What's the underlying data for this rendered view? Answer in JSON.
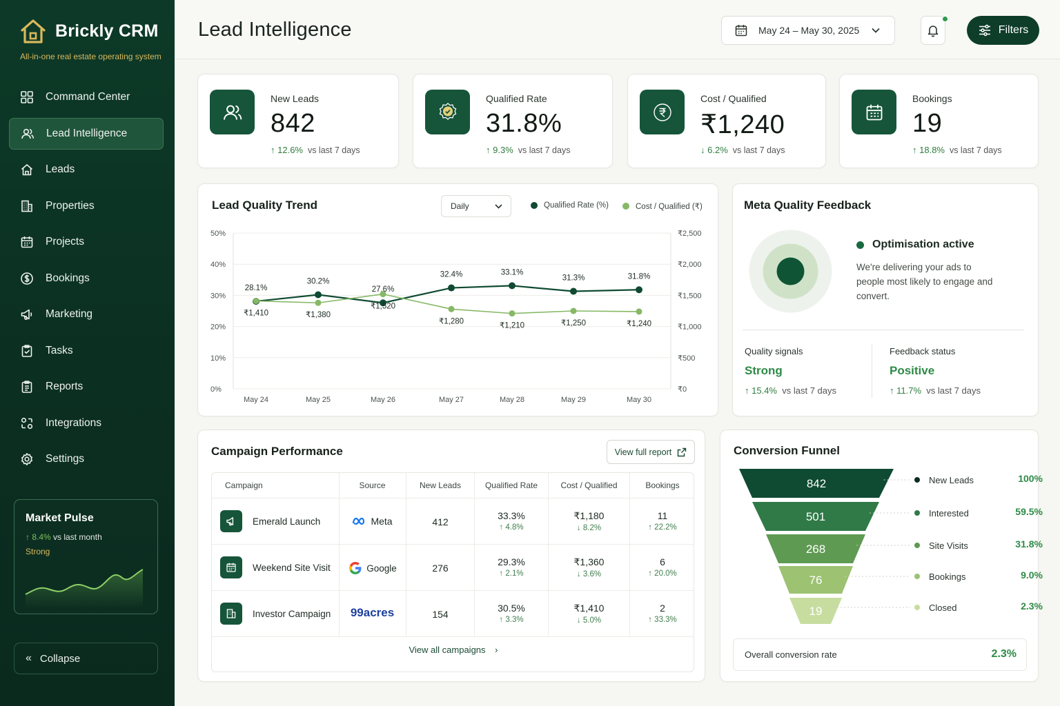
{
  "brand": {
    "name": "Brickly CRM",
    "tagline": "All-in-one real estate operating system"
  },
  "nav": [
    {
      "label": "Command Center",
      "icon": "grid-icon",
      "active": false
    },
    {
      "label": "Lead Intelligence",
      "icon": "users-icon",
      "active": true
    },
    {
      "label": "Leads",
      "icon": "home-icon",
      "active": false
    },
    {
      "label": "Properties",
      "icon": "building-icon",
      "active": false
    },
    {
      "label": "Projects",
      "icon": "calendar-icon",
      "active": false
    },
    {
      "label": "Bookings",
      "icon": "dollar-circle-icon",
      "active": false
    },
    {
      "label": "Marketing",
      "icon": "megaphone-icon",
      "active": false
    },
    {
      "label": "Tasks",
      "icon": "clipboard-check-icon",
      "active": false
    },
    {
      "label": "Reports",
      "icon": "report-icon",
      "active": false
    },
    {
      "label": "Integrations",
      "icon": "integrations-icon",
      "active": false
    },
    {
      "label": "Settings",
      "icon": "gear-icon",
      "active": false
    }
  ],
  "market_pulse": {
    "title": "Market Pulse",
    "delta": "8.4%",
    "delta_suffix": "vs last month",
    "strength": "Strong"
  },
  "collapse_label": "Collapse",
  "header": {
    "title": "Lead Intelligence",
    "date_range": "May 24 – May 30, 2025",
    "filters_label": "Filters"
  },
  "kpis": [
    {
      "label": "New Leads",
      "value": "842",
      "delta": "12.6%",
      "direction": "up",
      "suffix": "vs last 7 days",
      "icon": "users-icon"
    },
    {
      "label": "Qualified Rate",
      "value": "31.8%",
      "delta": "9.3%",
      "direction": "up",
      "suffix": "vs last 7 days",
      "icon": "check-badge-icon"
    },
    {
      "label": "Cost / Qualified",
      "value": "₹1,240",
      "delta": "6.2%",
      "direction": "down",
      "suffix": "vs last 7 days",
      "icon": "rupee-icon"
    },
    {
      "label": "Bookings",
      "value": "19",
      "delta": "18.8%",
      "direction": "up",
      "suffix": "vs last 7 days",
      "icon": "calendar-grid-icon"
    }
  ],
  "trend": {
    "title": "Lead Quality Trend",
    "period": "Daily",
    "legend_qualified": "Qualified Rate (%)",
    "legend_cost": "Cost / Qualified (₹)"
  },
  "chart_data": {
    "type": "line",
    "categories": [
      "May 24",
      "May 25",
      "May 26",
      "May 27",
      "May 28",
      "May 29",
      "May 30"
    ],
    "series": [
      {
        "name": "Qualified Rate (%)",
        "axis": "left",
        "color": "#0f4a32",
        "values": [
          28.1,
          30.2,
          27.6,
          32.4,
          33.1,
          31.3,
          31.8
        ],
        "labels": [
          "28.1%",
          "30.2%",
          "27.6%",
          "32.4%",
          "33.1%",
          "31.3%",
          "31.8%"
        ]
      },
      {
        "name": "Cost / Qualified (₹)",
        "axis": "right",
        "color": "#86b866",
        "values": [
          1410,
          1380,
          1520,
          1280,
          1210,
          1250,
          1240
        ],
        "labels": [
          "₹1,410",
          "₹1,380",
          "₹1,520",
          "₹1,280",
          "₹1,210",
          "₹1,250",
          "₹1,240"
        ]
      }
    ],
    "left_axis": {
      "ticks": [
        "0%",
        "10%",
        "20%",
        "30%",
        "40%",
        "50%"
      ],
      "ylim": [
        0,
        50
      ]
    },
    "right_axis": {
      "ticks": [
        "₹0",
        "₹500",
        "₹1,000",
        "₹1,500",
        "₹2,000",
        "₹2,500"
      ],
      "ylim": [
        0,
        2500
      ]
    },
    "grid": true
  },
  "meta_feedback": {
    "title": "Meta Quality Feedback",
    "status": "Optimisation active",
    "description": "We're delivering your ads to people most likely to engage and convert.",
    "signals_label": "Quality signals",
    "signals_value": "Strong",
    "signals_delta": "15.4%",
    "signals_suffix": "vs last 7 days",
    "feedback_label": "Feedback status",
    "feedback_value": "Positive",
    "feedback_delta": "11.7%",
    "feedback_suffix": "vs last 7 days"
  },
  "campaigns": {
    "title": "Campaign Performance",
    "view_full": "View full report",
    "view_all": "View all campaigns",
    "headers": [
      "Campaign",
      "Source",
      "New Leads",
      "Qualified Rate",
      "Cost / Qualified",
      "Bookings"
    ],
    "rows": [
      {
        "name": "Emerald Launch",
        "icon": "megaphone-icon",
        "source": "Meta",
        "source_icon": "meta-logo-icon",
        "leads": "412",
        "qrate": "33.3%",
        "qrate_delta": "4.8%",
        "qrate_dir": "up",
        "cost": "₹1,180",
        "cost_delta": "8.2%",
        "cost_dir": "down",
        "bookings": "11",
        "bookings_delta": "22.2%",
        "bookings_dir": "up"
      },
      {
        "name": "Weekend Site Visit",
        "icon": "calendar-icon",
        "source": "Google",
        "source_icon": "google-logo-icon",
        "leads": "276",
        "qrate": "29.3%",
        "qrate_delta": "2.1%",
        "qrate_dir": "up",
        "cost": "₹1,360",
        "cost_delta": "3.6%",
        "cost_dir": "down",
        "bookings": "6",
        "bookings_delta": "20.0%",
        "bookings_dir": "up"
      },
      {
        "name": "Investor Campaign",
        "icon": "building-icon",
        "source": "99acres",
        "source_icon": "none",
        "leads": "154",
        "qrate": "30.5%",
        "qrate_delta": "3.3%",
        "qrate_dir": "up",
        "cost": "₹1,410",
        "cost_delta": "5.0%",
        "cost_dir": "down",
        "bookings": "2",
        "bookings_delta": "33.3%",
        "bookings_dir": "up"
      }
    ]
  },
  "funnel": {
    "title": "Conversion Funnel",
    "stages": [
      {
        "label": "New Leads",
        "value": "842",
        "pct": "100%",
        "color": "#0f4a32"
      },
      {
        "label": "Interested",
        "value": "501",
        "pct": "59.5%",
        "color": "#2f7a47"
      },
      {
        "label": "Site Visits",
        "value": "268",
        "pct": "31.8%",
        "color": "#5f9a52"
      },
      {
        "label": "Bookings",
        "value": "76",
        "pct": "9.0%",
        "color": "#9cc272"
      },
      {
        "label": "Closed",
        "value": "19",
        "pct": "2.3%",
        "color": "#c7dda0"
      }
    ],
    "overall_label": "Overall conversion rate",
    "overall_value": "2.3%"
  }
}
